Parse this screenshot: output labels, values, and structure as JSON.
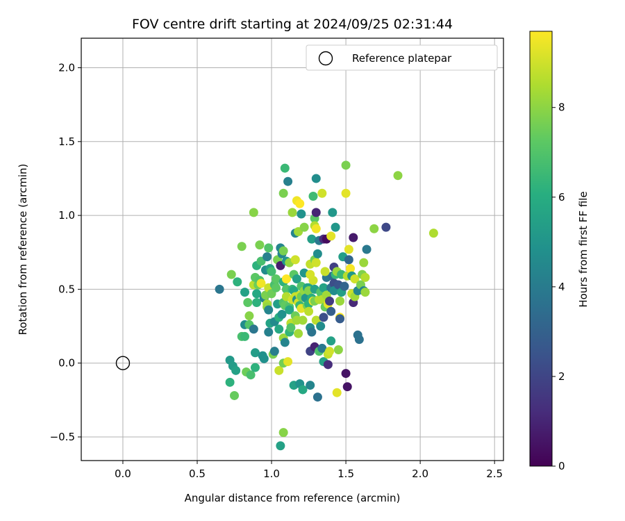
{
  "chart_data": {
    "type": "scatter",
    "title": "FOV centre drift starting at 2024/09/25 02:31:44",
    "xlabel": "Angular distance from reference (arcmin)",
    "ylabel": "Rotation from reference (arcmin)",
    "xlim": [
      -0.28,
      2.56
    ],
    "ylim": [
      -0.66,
      2.2
    ],
    "xticks": [
      "0.0",
      "0.5",
      "1.0",
      "1.5",
      "2.0",
      "2.5"
    ],
    "yticks": [
      "−0.5",
      "0.0",
      "0.5",
      "1.0",
      "1.5",
      "2.0"
    ],
    "xtick_values": [
      0,
      0.5,
      1.0,
      1.5,
      2.0,
      2.5
    ],
    "ytick_values": [
      -0.5,
      0,
      0.5,
      1.0,
      1.5,
      2.0
    ],
    "grid": true,
    "legend": {
      "placement": "top-right",
      "label": "Reference platepar"
    },
    "reference_point": {
      "x": 0.0,
      "y": 0.0
    },
    "colorbar": {
      "label": "Hours from first FF file",
      "colormap": "viridis",
      "range": [
        0,
        9.7
      ],
      "ticks": [
        "0",
        "2",
        "4",
        "6",
        "8"
      ],
      "tick_values": [
        0,
        2,
        4,
        6,
        8
      ]
    },
    "points": [
      {
        "x": 0.65,
        "y": 0.5,
        "h": 3.8
      },
      {
        "x": 0.73,
        "y": 0.6,
        "h": 7.7
      },
      {
        "x": 0.72,
        "y": 0.02,
        "h": 5.2
      },
      {
        "x": 0.72,
        "y": -0.13,
        "h": 6.2
      },
      {
        "x": 0.74,
        "y": -0.02,
        "h": 5.3
      },
      {
        "x": 0.75,
        "y": -0.22,
        "h": 7.4
      },
      {
        "x": 0.76,
        "y": -0.05,
        "h": 5.5
      },
      {
        "x": 0.77,
        "y": 0.55,
        "h": 6.2
      },
      {
        "x": 0.8,
        "y": 0.79,
        "h": 7.7
      },
      {
        "x": 0.8,
        "y": 0.18,
        "h": 6.8
      },
      {
        "x": 0.82,
        "y": 0.18,
        "h": 6.5
      },
      {
        "x": 0.82,
        "y": 0.48,
        "h": 5.5
      },
      {
        "x": 0.82,
        "y": 0.26,
        "h": 4.6
      },
      {
        "x": 0.83,
        "y": -0.06,
        "h": 7.5
      },
      {
        "x": 0.84,
        "y": 0.41,
        "h": 7.2
      },
      {
        "x": 0.85,
        "y": 0.26,
        "h": 7.0
      },
      {
        "x": 0.85,
        "y": 0.32,
        "h": 7.9
      },
      {
        "x": 0.86,
        "y": -0.08,
        "h": 6.8
      },
      {
        "x": 0.88,
        "y": 1.02,
        "h": 7.9
      },
      {
        "x": 0.88,
        "y": 0.53,
        "h": 8.7
      },
      {
        "x": 0.88,
        "y": 0.23,
        "h": 3.8
      },
      {
        "x": 0.89,
        "y": 0.07,
        "h": 5.3
      },
      {
        "x": 0.89,
        "y": 0.58,
        "h": 7.2
      },
      {
        "x": 0.89,
        "y": -0.03,
        "h": 6.2
      },
      {
        "x": 0.9,
        "y": 0.66,
        "h": 6.2
      },
      {
        "x": 0.9,
        "y": 0.47,
        "h": 5.8
      },
      {
        "x": 0.9,
        "y": 0.41,
        "h": 6.2
      },
      {
        "x": 0.91,
        "y": 0.53,
        "h": 7.5
      },
      {
        "x": 0.92,
        "y": 0.8,
        "h": 7.7
      },
      {
        "x": 0.92,
        "y": 0.56,
        "h": 7.0
      },
      {
        "x": 0.93,
        "y": 0.69,
        "h": 6.8
      },
      {
        "x": 0.93,
        "y": 0.54,
        "h": 9.5
      },
      {
        "x": 0.94,
        "y": 0.05,
        "h": 4.8
      },
      {
        "x": 0.95,
        "y": 0.44,
        "h": 4.3
      },
      {
        "x": 0.95,
        "y": 0.03,
        "h": 4.8
      },
      {
        "x": 0.96,
        "y": 0.63,
        "h": 4.6
      },
      {
        "x": 0.96,
        "y": 0.46,
        "h": 7.7
      },
      {
        "x": 0.97,
        "y": 0.72,
        "h": 4.2
      },
      {
        "x": 0.97,
        "y": 0.4,
        "h": 8.4
      },
      {
        "x": 0.97,
        "y": 0.38,
        "h": 8.1
      },
      {
        "x": 0.98,
        "y": 0.78,
        "h": 7.0
      },
      {
        "x": 0.98,
        "y": 0.51,
        "h": 8.9
      },
      {
        "x": 0.98,
        "y": 0.36,
        "h": 4.4
      },
      {
        "x": 0.98,
        "y": 0.21,
        "h": 4.2
      },
      {
        "x": 0.99,
        "y": 0.64,
        "h": 5.6
      },
      {
        "x": 0.99,
        "y": 0.27,
        "h": 5.6
      },
      {
        "x": 1.0,
        "y": 0.62,
        "h": 6.7
      },
      {
        "x": 1.0,
        "y": 0.47,
        "h": 7.5
      },
      {
        "x": 1.01,
        "y": 0.06,
        "h": 7.7
      },
      {
        "x": 1.02,
        "y": 0.53,
        "h": 6.8
      },
      {
        "x": 1.02,
        "y": 0.28,
        "h": 4.6
      },
      {
        "x": 1.02,
        "y": 0.08,
        "h": 4.1
      },
      {
        "x": 1.03,
        "y": 0.57,
        "h": 7.2
      },
      {
        "x": 1.03,
        "y": 0.51,
        "h": 7.2
      },
      {
        "x": 1.04,
        "y": 0.7,
        "h": 7.7
      },
      {
        "x": 1.04,
        "y": 0.4,
        "h": 5.4
      },
      {
        "x": 1.05,
        "y": 0.31,
        "h": 6.1
      },
      {
        "x": 1.05,
        "y": 0.23,
        "h": 5.8
      },
      {
        "x": 1.05,
        "y": -0.05,
        "h": 8.9
      },
      {
        "x": 1.06,
        "y": 0.78,
        "h": 4.4
      },
      {
        "x": 1.06,
        "y": 0.66,
        "h": 0.8
      },
      {
        "x": 1.06,
        "y": -0.56,
        "h": 5.5
      },
      {
        "x": 1.07,
        "y": 0.74,
        "h": 4.4
      },
      {
        "x": 1.07,
        "y": 0.33,
        "h": 4.9
      },
      {
        "x": 1.08,
        "y": 1.15,
        "h": 7.7
      },
      {
        "x": 1.08,
        "y": 0.76,
        "h": 7.7
      },
      {
        "x": 1.08,
        "y": 0.55,
        "h": 6.2
      },
      {
        "x": 1.08,
        "y": 0.41,
        "h": 7.0
      },
      {
        "x": 1.08,
        "y": 0.17,
        "h": 8.2
      },
      {
        "x": 1.08,
        "y": 0.0,
        "h": 7.6
      },
      {
        "x": 1.08,
        "y": -0.47,
        "h": 7.9
      },
      {
        "x": 1.09,
        "y": 1.32,
        "h": 6.5
      },
      {
        "x": 1.09,
        "y": 0.39,
        "h": 7.3
      },
      {
        "x": 1.09,
        "y": 0.14,
        "h": 4.4
      },
      {
        "x": 1.1,
        "y": 0.69,
        "h": 5.0
      },
      {
        "x": 1.1,
        "y": 0.57,
        "h": 9.7
      },
      {
        "x": 1.1,
        "y": 0.5,
        "h": 7.0
      },
      {
        "x": 1.1,
        "y": 0.45,
        "h": 8.6
      },
      {
        "x": 1.11,
        "y": 1.23,
        "h": 4.2
      },
      {
        "x": 1.11,
        "y": 0.01,
        "h": 9.3
      },
      {
        "x": 1.12,
        "y": 0.68,
        "h": 8.1
      },
      {
        "x": 1.12,
        "y": 0.38,
        "h": 7.0
      },
      {
        "x": 1.12,
        "y": 0.36,
        "h": 5.8
      },
      {
        "x": 1.12,
        "y": 0.21,
        "h": 6.3
      },
      {
        "x": 1.13,
        "y": 0.27,
        "h": 8.7
      },
      {
        "x": 1.13,
        "y": 0.24,
        "h": 7.0
      },
      {
        "x": 1.14,
        "y": 1.02,
        "h": 8.2
      },
      {
        "x": 1.14,
        "y": 0.5,
        "h": 6.4
      },
      {
        "x": 1.14,
        "y": 0.43,
        "h": 9.0
      },
      {
        "x": 1.15,
        "y": 0.6,
        "h": 7.2
      },
      {
        "x": 1.15,
        "y": 0.49,
        "h": 5.8
      },
      {
        "x": 1.15,
        "y": -0.15,
        "h": 5.5
      },
      {
        "x": 1.16,
        "y": 0.88,
        "h": 4.4
      },
      {
        "x": 1.16,
        "y": 0.7,
        "h": 9.0
      },
      {
        "x": 1.16,
        "y": 0.45,
        "h": 8.9
      },
      {
        "x": 1.16,
        "y": 0.32,
        "h": 7.5
      },
      {
        "x": 1.17,
        "y": 1.1,
        "h": 9.5
      },
      {
        "x": 1.17,
        "y": 0.57,
        "h": 5.5
      },
      {
        "x": 1.17,
        "y": 0.43,
        "h": 4.8
      },
      {
        "x": 1.17,
        "y": 0.29,
        "h": 8.3
      },
      {
        "x": 1.18,
        "y": 0.89,
        "h": 8.3
      },
      {
        "x": 1.18,
        "y": 0.41,
        "h": 9.0
      },
      {
        "x": 1.18,
        "y": 0.2,
        "h": 8.3
      },
      {
        "x": 1.19,
        "y": 1.08,
        "h": 9.7
      },
      {
        "x": 1.19,
        "y": 0.46,
        "h": 8.9
      },
      {
        "x": 1.19,
        "y": 0.39,
        "h": 6.4
      },
      {
        "x": 1.19,
        "y": -0.14,
        "h": 4.9
      },
      {
        "x": 1.2,
        "y": 1.01,
        "h": 4.9
      },
      {
        "x": 1.2,
        "y": 0.52,
        "h": 7.0
      },
      {
        "x": 1.2,
        "y": 0.45,
        "h": 7.6
      },
      {
        "x": 1.2,
        "y": 0.37,
        "h": 9.3
      },
      {
        "x": 1.21,
        "y": 0.29,
        "h": 8.3
      },
      {
        "x": 1.21,
        "y": -0.18,
        "h": 5.8
      },
      {
        "x": 1.22,
        "y": 0.92,
        "h": 7.9
      },
      {
        "x": 1.22,
        "y": 0.61,
        "h": 5.0
      },
      {
        "x": 1.22,
        "y": 0.49,
        "h": 8.1
      },
      {
        "x": 1.23,
        "y": 0.44,
        "h": 5.0
      },
      {
        "x": 1.24,
        "y": 0.51,
        "h": 5.5
      },
      {
        "x": 1.24,
        "y": 0.39,
        "h": 7.7
      },
      {
        "x": 1.25,
        "y": 0.51,
        "h": 5.6
      },
      {
        "x": 1.25,
        "y": 0.49,
        "h": 7.9
      },
      {
        "x": 1.25,
        "y": 0.4,
        "h": 6.2
      },
      {
        "x": 1.25,
        "y": 0.35,
        "h": 8.7
      },
      {
        "x": 1.26,
        "y": 0.67,
        "h": 8.8
      },
      {
        "x": 1.26,
        "y": 0.24,
        "h": 4.6
      },
      {
        "x": 1.26,
        "y": 0.08,
        "h": 1.9
      },
      {
        "x": 1.26,
        "y": -0.15,
        "h": 4.4
      },
      {
        "x": 1.27,
        "y": 0.84,
        "h": 5.4
      },
      {
        "x": 1.27,
        "y": 0.44,
        "h": 6.1
      },
      {
        "x": 1.27,
        "y": 0.21,
        "h": 3.7
      },
      {
        "x": 1.28,
        "y": 1.13,
        "h": 6.6
      },
      {
        "x": 1.28,
        "y": 0.56,
        "h": 9.0
      },
      {
        "x": 1.28,
        "y": 0.42,
        "h": 9.5
      },
      {
        "x": 1.29,
        "y": 0.98,
        "h": 7.2
      },
      {
        "x": 1.29,
        "y": 0.93,
        "h": 8.6
      },
      {
        "x": 1.29,
        "y": 0.7,
        "h": 7.7
      },
      {
        "x": 1.29,
        "y": 0.5,
        "h": 5.5
      },
      {
        "x": 1.29,
        "y": 0.42,
        "h": 7.7
      },
      {
        "x": 1.29,
        "y": 0.11,
        "h": 0.9
      },
      {
        "x": 1.3,
        "y": 1.25,
        "h": 4.7
      },
      {
        "x": 1.3,
        "y": 1.02,
        "h": 1.0
      },
      {
        "x": 1.3,
        "y": 0.91,
        "h": 9.5
      },
      {
        "x": 1.3,
        "y": 0.68,
        "h": 9.0
      },
      {
        "x": 1.3,
        "y": 0.29,
        "h": 8.7
      },
      {
        "x": 1.31,
        "y": 0.74,
        "h": 4.7
      },
      {
        "x": 1.31,
        "y": -0.23,
        "h": 3.6
      },
      {
        "x": 1.32,
        "y": 0.83,
        "h": 3.9
      },
      {
        "x": 1.32,
        "y": 0.43,
        "h": 8.6
      },
      {
        "x": 1.32,
        "y": 0.08,
        "h": 6.9
      },
      {
        "x": 1.33,
        "y": 0.48,
        "h": 7.0
      },
      {
        "x": 1.33,
        "y": 0.25,
        "h": 4.7
      },
      {
        "x": 1.34,
        "y": 1.15,
        "h": 9.0
      },
      {
        "x": 1.34,
        "y": 0.43,
        "h": 8.6
      },
      {
        "x": 1.34,
        "y": 0.1,
        "h": 3.9
      },
      {
        "x": 1.35,
        "y": 0.84,
        "h": 1.2
      },
      {
        "x": 1.35,
        "y": 0.51,
        "h": 5.6
      },
      {
        "x": 1.35,
        "y": 0.31,
        "h": 2.3
      },
      {
        "x": 1.35,
        "y": 0.01,
        "h": 5.5
      },
      {
        "x": 1.36,
        "y": 0.38,
        "h": 7.4
      },
      {
        "x": 1.37,
        "y": 0.84,
        "h": 0.3
      },
      {
        "x": 1.37,
        "y": 0.58,
        "h": 3.8
      },
      {
        "x": 1.37,
        "y": 0.46,
        "h": 8.3
      },
      {
        "x": 1.38,
        "y": 0.4,
        "h": 9.3
      },
      {
        "x": 1.38,
        "y": 0.06,
        "h": 8.8
      },
      {
        "x": 1.38,
        "y": -0.01,
        "h": 1.2
      },
      {
        "x": 1.39,
        "y": 0.42,
        "h": 1.7
      },
      {
        "x": 1.39,
        "y": 0.08,
        "h": 9.0
      },
      {
        "x": 1.4,
        "y": 0.86,
        "h": 9.3
      },
      {
        "x": 1.4,
        "y": 0.51,
        "h": 3.8
      },
      {
        "x": 1.4,
        "y": 0.35,
        "h": 2.9
      },
      {
        "x": 1.4,
        "y": 0.15,
        "h": 5.5
      },
      {
        "x": 1.41,
        "y": 1.02,
        "h": 5.1
      },
      {
        "x": 1.41,
        "y": 0.59,
        "h": 3.4
      },
      {
        "x": 1.42,
        "y": 0.65,
        "h": 1.8
      },
      {
        "x": 1.42,
        "y": 0.54,
        "h": 2.3
      },
      {
        "x": 1.42,
        "y": 0.49,
        "h": 4.7
      },
      {
        "x": 1.43,
        "y": 0.92,
        "h": 5.1
      },
      {
        "x": 1.43,
        "y": 0.6,
        "h": 6.4
      },
      {
        "x": 1.44,
        "y": 0.62,
        "h": 8.2
      },
      {
        "x": 1.44,
        "y": -0.2,
        "h": 9.3
      },
      {
        "x": 1.45,
        "y": 0.09,
        "h": 8.0
      },
      {
        "x": 1.45,
        "y": 0.53,
        "h": 2.5
      },
      {
        "x": 1.46,
        "y": 0.31,
        "h": 9.7
      },
      {
        "x": 1.46,
        "y": 0.3,
        "h": 2.8
      },
      {
        "x": 1.47,
        "y": 0.6,
        "h": 6.5
      },
      {
        "x": 1.47,
        "y": 0.48,
        "h": 5.4
      },
      {
        "x": 1.48,
        "y": 0.72,
        "h": 5.4
      },
      {
        "x": 1.49,
        "y": 0.52,
        "h": 3.1
      },
      {
        "x": 1.5,
        "y": 1.34,
        "h": 7.7
      },
      {
        "x": 1.5,
        "y": 1.15,
        "h": 9.3
      },
      {
        "x": 1.5,
        "y": -0.07,
        "h": 0.5
      },
      {
        "x": 1.51,
        "y": 0.59,
        "h": 8.6
      },
      {
        "x": 1.51,
        "y": -0.16,
        "h": 0.5
      },
      {
        "x": 1.52,
        "y": 0.7,
        "h": 3.2
      },
      {
        "x": 1.52,
        "y": 0.77,
        "h": 9.3
      },
      {
        "x": 1.53,
        "y": 0.64,
        "h": 9.6
      },
      {
        "x": 1.54,
        "y": 0.59,
        "h": 5.1
      },
      {
        "x": 1.54,
        "y": 0.47,
        "h": 8.9
      },
      {
        "x": 1.55,
        "y": 0.41,
        "h": 1.1
      },
      {
        "x": 1.55,
        "y": 0.85,
        "h": 0.7
      },
      {
        "x": 1.56,
        "y": 0.45,
        "h": 8.3
      },
      {
        "x": 1.56,
        "y": 0.57,
        "h": 9.0
      },
      {
        "x": 1.58,
        "y": 0.49,
        "h": 4.4
      },
      {
        "x": 1.58,
        "y": 0.19,
        "h": 3.6
      },
      {
        "x": 1.59,
        "y": 0.16,
        "h": 3.6
      },
      {
        "x": 1.6,
        "y": 0.53,
        "h": 7.7
      },
      {
        "x": 1.61,
        "y": 0.6,
        "h": 7.8
      },
      {
        "x": 1.62,
        "y": 0.68,
        "h": 8.2
      },
      {
        "x": 1.62,
        "y": 0.49,
        "h": 4.4
      },
      {
        "x": 1.63,
        "y": 0.58,
        "h": 8.6
      },
      {
        "x": 1.64,
        "y": 0.77,
        "h": 3.9
      },
      {
        "x": 1.69,
        "y": 0.91,
        "h": 8.0
      },
      {
        "x": 1.77,
        "y": 0.92,
        "h": 2.1
      },
      {
        "x": 1.85,
        "y": 1.27,
        "h": 8.0
      },
      {
        "x": 2.09,
        "y": 0.88,
        "h": 8.5
      },
      {
        "x": 1.63,
        "y": 0.48,
        "h": 8.2
      },
      {
        "x": 1.46,
        "y": 0.42,
        "h": 8.2
      },
      {
        "x": 1.36,
        "y": 0.62,
        "h": 8.9
      },
      {
        "x": 1.26,
        "y": 0.6,
        "h": 9.1
      }
    ]
  }
}
